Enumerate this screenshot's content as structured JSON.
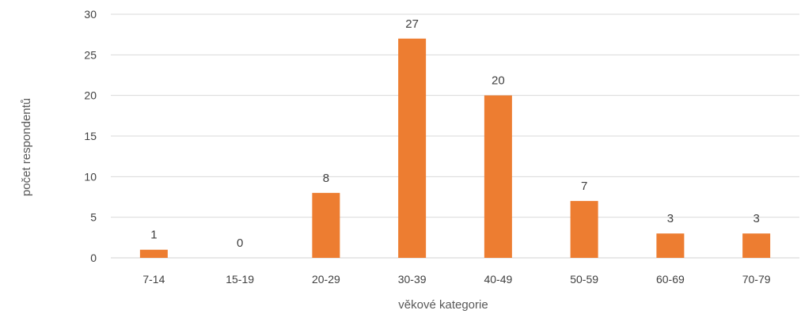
{
  "chart_data": {
    "type": "bar",
    "categories": [
      "7-14",
      "15-19",
      "20-29",
      "30-39",
      "40-49",
      "50-59",
      "60-69",
      "70-79"
    ],
    "values": [
      1,
      0,
      8,
      27,
      20,
      7,
      3,
      3
    ],
    "data_labels": [
      "1",
      "0",
      "8",
      "27",
      "20",
      "7",
      "3",
      "3"
    ],
    "yticks": [
      0,
      5,
      10,
      15,
      20,
      25,
      30
    ],
    "ylim": [
      0,
      30
    ],
    "xlabel": "věkové kategorie",
    "ylabel": "počet respondentů",
    "grid": true,
    "legend": "none",
    "bar_color": "#ED7D31"
  }
}
